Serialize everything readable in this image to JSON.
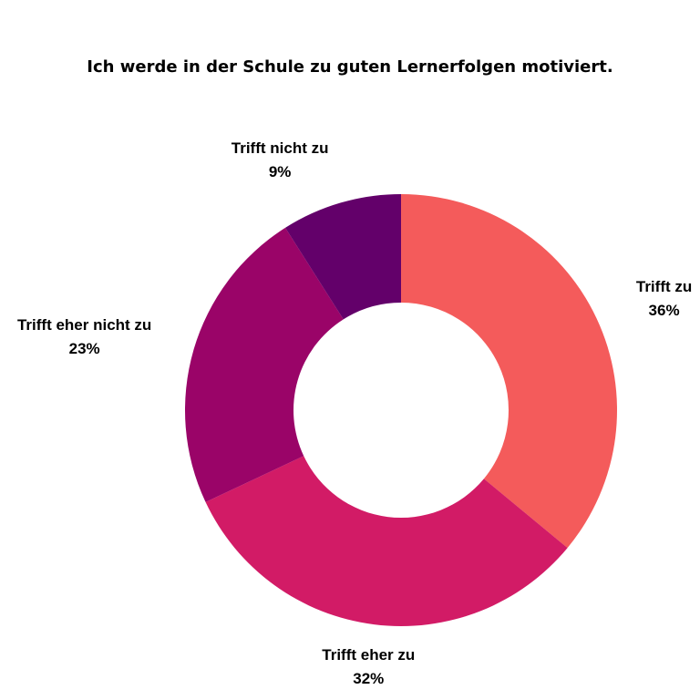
{
  "chart_data": {
    "type": "donut",
    "title": "Ich werde in der Schule zu guten Lernerfolgen motiviert.",
    "categories": [
      "Trifft zu",
      "Trifft eher zu",
      "Trifft eher nicht zu",
      "Trifft nicht zu"
    ],
    "values": [
      36,
      32,
      23,
      9
    ],
    "value_labels": [
      "36%",
      "32%",
      "23%",
      "9%"
    ],
    "colors": [
      "#f45b5b",
      "#d21b66",
      "#9a0468",
      "#63006a"
    ]
  }
}
